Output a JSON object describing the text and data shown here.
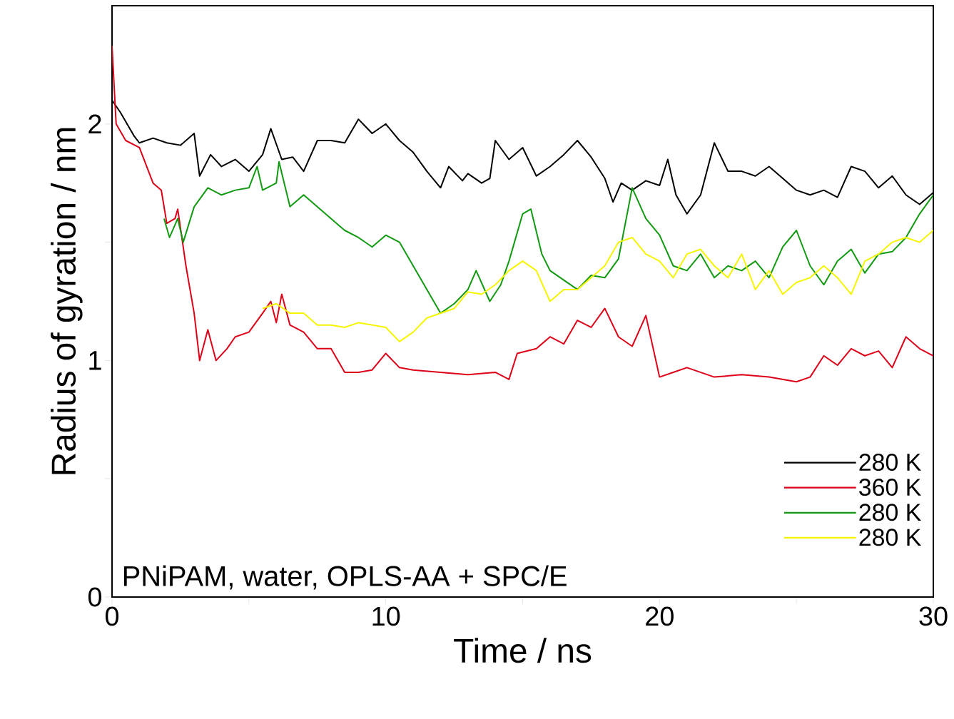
{
  "chart_data": {
    "type": "line",
    "xlabel": "Time / ns",
    "ylabel": "Radius of gyration / nm",
    "xlim": [
      0,
      30
    ],
    "ylim": [
      0,
      2.5
    ],
    "xticks": [
      0,
      {
        "value": 5,
        "label": null
      },
      10,
      {
        "value": 15,
        "label": null
      },
      20,
      {
        "value": 25,
        "label": null
      },
      30
    ],
    "yticks": [
      0,
      {
        "value": 0.5,
        "label": null
      },
      1,
      {
        "value": 1.5,
        "label": null
      },
      2
    ],
    "legend": "bottom right",
    "grid": false,
    "line_style": "solid",
    "marker": "none",
    "annotations": [
      "PNiPAM, water, OPLS-AA + SPC/E"
    ],
    "series": [
      {
        "name": "280 K",
        "color": "#000000",
        "x": [
          0,
          0.3,
          0.8,
          1,
          1.5,
          2,
          2.5,
          3,
          3.2,
          3.6,
          4,
          4.5,
          5,
          5.5,
          5.8,
          6.2,
          6.6,
          7,
          7.5,
          8,
          8.5,
          9,
          9.5,
          10,
          10.5,
          11,
          11.5,
          12,
          12.3,
          12.8,
          13,
          13.5,
          13.8,
          14,
          14.5,
          15,
          15.5,
          16,
          16.5,
          17,
          17.5,
          18,
          18.3,
          18.6,
          19,
          19.5,
          20,
          20.3,
          20.6,
          21,
          21.5,
          22,
          22.5,
          23,
          23.5,
          24,
          24.5,
          25,
          25.5,
          26,
          26.5,
          27,
          27.5,
          28,
          28.5,
          29,
          29.5,
          30
        ],
        "values": [
          2.1,
          2.05,
          1.95,
          1.92,
          1.94,
          1.92,
          1.91,
          1.96,
          1.78,
          1.87,
          1.82,
          1.85,
          1.8,
          1.87,
          1.98,
          1.85,
          1.86,
          1.8,
          1.93,
          1.93,
          1.92,
          2.02,
          1.96,
          2.0,
          1.93,
          1.88,
          1.8,
          1.73,
          1.82,
          1.76,
          1.79,
          1.75,
          1.77,
          1.93,
          1.85,
          1.9,
          1.78,
          1.82,
          1.87,
          1.93,
          1.86,
          1.77,
          1.67,
          1.75,
          1.72,
          1.76,
          1.74,
          1.85,
          1.7,
          1.62,
          1.7,
          1.92,
          1.8,
          1.8,
          1.78,
          1.82,
          1.77,
          1.72,
          1.7,
          1.72,
          1.69,
          1.82,
          1.8,
          1.73,
          1.78,
          1.7,
          1.66,
          1.71
        ]
      },
      {
        "name": "360 K",
        "color": "#dd0018",
        "x": [
          0,
          0.15,
          0.5,
          1,
          1.5,
          1.8,
          2,
          2.3,
          2.4,
          2.7,
          3,
          3.2,
          3.5,
          3.8,
          4.2,
          4.5,
          5,
          5.5,
          5.8,
          6,
          6.2,
          6.5,
          7,
          7.5,
          8,
          8.5,
          9,
          9.5,
          10,
          10.5,
          11,
          12,
          13,
          14,
          14.5,
          14.8,
          15.5,
          16,
          16.5,
          17,
          17.5,
          18,
          18.5,
          19,
          19.5,
          20,
          20.5,
          21,
          22,
          23,
          24,
          25,
          25.5,
          26,
          26.5,
          27,
          27.5,
          28,
          28.5,
          29,
          29.5,
          30
        ],
        "values": [
          2.33,
          2.0,
          1.93,
          1.9,
          1.75,
          1.72,
          1.58,
          1.6,
          1.64,
          1.4,
          1.2,
          1.0,
          1.13,
          1.0,
          1.05,
          1.1,
          1.12,
          1.2,
          1.25,
          1.16,
          1.28,
          1.15,
          1.12,
          1.05,
          1.05,
          0.95,
          0.95,
          0.96,
          1.03,
          0.97,
          0.96,
          0.95,
          0.94,
          0.95,
          0.92,
          1.03,
          1.05,
          1.1,
          1.07,
          1.17,
          1.14,
          1.22,
          1.1,
          1.06,
          1.19,
          0.93,
          0.95,
          0.97,
          0.93,
          0.94,
          0.93,
          0.91,
          0.93,
          1.02,
          0.98,
          1.05,
          1.02,
          1.04,
          0.97,
          1.1,
          1.05,
          1.02
        ]
      },
      {
        "name": "280 K",
        "color": "#119911",
        "x": [
          1.9,
          2.1,
          2.4,
          2.6,
          3,
          3.5,
          4,
          4.5,
          5,
          5.3,
          5.5,
          6,
          6.1,
          6.5,
          7,
          7.5,
          8,
          8.5,
          9,
          9.5,
          10,
          10.5,
          11,
          11.5,
          12,
          12.5,
          13,
          13.3,
          13.8,
          14.2,
          14.5,
          15,
          15.3,
          15.7,
          16,
          16.5,
          17,
          17.5,
          18,
          18.5,
          19,
          19.5,
          20,
          20.5,
          21,
          21.5,
          22,
          22.5,
          23,
          23.5,
          24,
          24.5,
          25,
          25.5,
          26,
          26.5,
          27,
          27.5,
          28,
          28.5,
          29,
          29.5,
          30
        ],
        "values": [
          1.6,
          1.52,
          1.6,
          1.5,
          1.65,
          1.73,
          1.7,
          1.72,
          1.73,
          1.82,
          1.72,
          1.75,
          1.84,
          1.65,
          1.7,
          1.65,
          1.6,
          1.55,
          1.52,
          1.48,
          1.53,
          1.5,
          1.4,
          1.3,
          1.2,
          1.24,
          1.3,
          1.38,
          1.25,
          1.32,
          1.42,
          1.62,
          1.64,
          1.45,
          1.38,
          1.34,
          1.3,
          1.36,
          1.35,
          1.43,
          1.73,
          1.6,
          1.53,
          1.4,
          1.38,
          1.45,
          1.35,
          1.4,
          1.38,
          1.42,
          1.35,
          1.48,
          1.55,
          1.4,
          1.32,
          1.42,
          1.47,
          1.37,
          1.45,
          1.46,
          1.52,
          1.62,
          1.7
        ]
      },
      {
        "name": "280 K",
        "color": "#f5f500",
        "x": [
          5.5,
          6,
          6.5,
          7,
          7.5,
          8,
          8.5,
          9,
          9.5,
          10,
          10.5,
          11,
          11.5,
          12,
          12.5,
          13,
          13.5,
          14,
          14.5,
          15,
          15.5,
          16,
          16.5,
          17,
          17.5,
          18,
          18.5,
          19,
          19.5,
          20,
          20.5,
          21,
          21.5,
          22,
          22.5,
          23,
          23.5,
          24,
          24.5,
          25,
          25.5,
          26,
          26.5,
          27,
          27.5,
          28,
          28.5,
          29,
          29.5,
          30
        ],
        "values": [
          1.22,
          1.24,
          1.2,
          1.2,
          1.15,
          1.15,
          1.14,
          1.16,
          1.15,
          1.14,
          1.08,
          1.12,
          1.18,
          1.2,
          1.22,
          1.29,
          1.28,
          1.32,
          1.38,
          1.42,
          1.38,
          1.25,
          1.3,
          1.3,
          1.35,
          1.4,
          1.5,
          1.52,
          1.45,
          1.42,
          1.35,
          1.45,
          1.47,
          1.4,
          1.35,
          1.45,
          1.3,
          1.38,
          1.28,
          1.33,
          1.35,
          1.4,
          1.35,
          1.28,
          1.42,
          1.45,
          1.5,
          1.52,
          1.5,
          1.55
        ]
      }
    ]
  }
}
